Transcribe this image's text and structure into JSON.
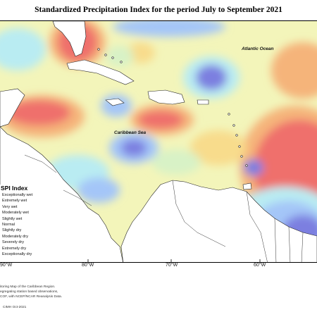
{
  "title": "Standardized Precipitation Index for the period July to September 2021",
  "labels": {
    "atlantic": "Atlantic Ocean",
    "caribbean": "Caribbean Sea"
  },
  "legend": {
    "title": "SPI Index",
    "items": [
      {
        "label": "Exceptionally wet",
        "color": "#6a3fa0"
      },
      {
        "label": "Extremely wet",
        "color": "#7b7fe0"
      },
      {
        "label": "Very wet",
        "color": "#a4c6f8"
      },
      {
        "label": "Moderately wet",
        "color": "#b9ecf2"
      },
      {
        "label": "Slightly wet",
        "color": "#d8f2c6"
      },
      {
        "label": "Normal",
        "color": "#f6f7b7"
      },
      {
        "label": "Slightly dry",
        "color": "#f8dc8c"
      },
      {
        "label": "Moderately dry",
        "color": "#f5b47a"
      },
      {
        "label": "Severely dry",
        "color": "#f07c73"
      },
      {
        "label": "Extremely dry",
        "color": "#e64b5b"
      },
      {
        "label": "Exceptionally dry",
        "color": "#c21f3c"
      }
    ]
  },
  "longitudes": [
    "90°W",
    "80°W",
    "70°W",
    "60°W"
  ],
  "footer": {
    "line1": "itoring Map of the Caribbean Region.",
    "line2": "egregating station based observations,",
    "line3": "COF, with NCEP/NCAR Reanalysis Data.",
    "credit": "CIMH Oct-2021"
  },
  "colors": {
    "base": "#f3f5ba",
    "dry": "#ef6f6c",
    "wet": "#8fb8ec",
    "very_wet": "#7b7fe0",
    "land": "#ffffff"
  }
}
